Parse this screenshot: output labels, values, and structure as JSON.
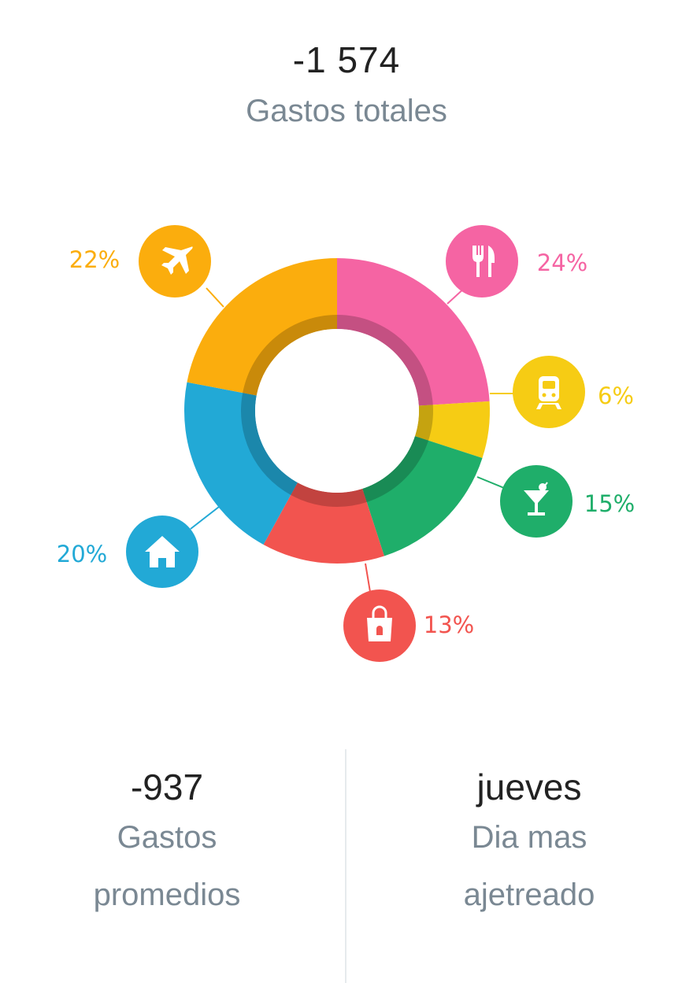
{
  "summary": {
    "total_value": "-1 574",
    "total_label": "Gastos totales"
  },
  "chart_data": {
    "type": "pie",
    "subtype": "donut",
    "slices": [
      {
        "category": "comida",
        "icon": "fork-knife-icon",
        "percent": 24,
        "label": "24%",
        "color": "#f564a3"
      },
      {
        "category": "transporte",
        "icon": "train-icon",
        "percent": 6,
        "label": "6%",
        "color": "#f6cc14"
      },
      {
        "category": "ocio",
        "icon": "cocktail-icon",
        "percent": 15,
        "label": "15%",
        "color": "#1fae6a"
      },
      {
        "category": "compras",
        "icon": "shopping-bag-icon",
        "percent": 13,
        "label": "13%",
        "color": "#f2544f"
      },
      {
        "category": "hogar",
        "icon": "house-icon",
        "percent": 20,
        "label": "20%",
        "color": "#22a9d6"
      },
      {
        "category": "viajes",
        "icon": "airplane-icon",
        "percent": 22,
        "label": "22%",
        "color": "#fbad0d"
      }
    ]
  },
  "stats": {
    "average": {
      "value": "-937",
      "label_line1": "Gastos",
      "label_line2": "promedios"
    },
    "busiest_day": {
      "value": "jueves",
      "label_line1": "Dia mas",
      "label_line2": "ajetreado"
    }
  }
}
